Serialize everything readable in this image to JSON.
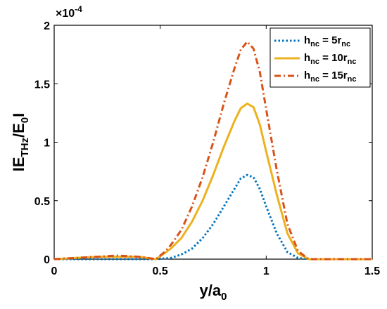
{
  "chart_data": {
    "type": "line",
    "xlabel": {
      "main": "y/a",
      "sub": "0"
    },
    "ylabel": {
      "p1": "IE",
      "s1": "THz",
      "p2": "/E",
      "s2": "0",
      "p3": "I"
    },
    "exponent": {
      "base": "×10",
      "power": "-4"
    },
    "xlim": [
      0,
      1.5
    ],
    "ylim": [
      0,
      2
    ],
    "xticks": [
      0,
      0.5,
      1,
      1.5
    ],
    "xtick_labels": [
      "0",
      "0.5",
      "1",
      "1.5"
    ],
    "yticks": [
      0,
      0.5,
      1,
      1.5,
      2
    ],
    "ytick_labels": [
      "0",
      "0.5",
      "1",
      "1.5",
      "2"
    ],
    "grid": false,
    "legend_position": "top-right",
    "series": [
      {
        "legend": {
          "p": "h",
          "sub1": "nc",
          "mid": " = 5r",
          "sub2": "nc"
        },
        "color": "#0072BD",
        "style": "dotted",
        "points": [
          [
            0,
            0
          ],
          [
            0.1,
            0
          ],
          [
            0.2,
            0
          ],
          [
            0.3,
            0
          ],
          [
            0.4,
            0
          ],
          [
            0.48,
            0
          ],
          [
            0.55,
            0.01
          ],
          [
            0.6,
            0.04
          ],
          [
            0.65,
            0.09
          ],
          [
            0.7,
            0.18
          ],
          [
            0.75,
            0.3
          ],
          [
            0.8,
            0.45
          ],
          [
            0.85,
            0.6
          ],
          [
            0.88,
            0.69
          ],
          [
            0.91,
            0.72
          ],
          [
            0.94,
            0.7
          ],
          [
            0.97,
            0.6
          ],
          [
            1.0,
            0.45
          ],
          [
            1.05,
            0.22
          ],
          [
            1.1,
            0.06
          ],
          [
            1.15,
            0.01
          ],
          [
            1.2,
            0
          ],
          [
            1.3,
            0
          ],
          [
            1.4,
            0
          ],
          [
            1.5,
            0
          ]
        ]
      },
      {
        "legend": {
          "p": "h",
          "sub1": "nc",
          "mid": " = 10r",
          "sub2": "nc"
        },
        "color": "#EDB120",
        "style": "solid",
        "points": [
          [
            0,
            0
          ],
          [
            0.1,
            0.01
          ],
          [
            0.2,
            0.02
          ],
          [
            0.3,
            0.02
          ],
          [
            0.4,
            0.02
          ],
          [
            0.48,
            0
          ],
          [
            0.52,
            0.05
          ],
          [
            0.55,
            0.09
          ],
          [
            0.6,
            0.18
          ],
          [
            0.65,
            0.32
          ],
          [
            0.7,
            0.5
          ],
          [
            0.75,
            0.72
          ],
          [
            0.8,
            0.96
          ],
          [
            0.85,
            1.18
          ],
          [
            0.88,
            1.29
          ],
          [
            0.91,
            1.33
          ],
          [
            0.94,
            1.3
          ],
          [
            0.97,
            1.15
          ],
          [
            1.0,
            0.92
          ],
          [
            1.05,
            0.55
          ],
          [
            1.1,
            0.22
          ],
          [
            1.15,
            0.05
          ],
          [
            1.2,
            0
          ],
          [
            1.3,
            0
          ],
          [
            1.4,
            0
          ],
          [
            1.5,
            0
          ]
        ]
      },
      {
        "legend": {
          "p": "h",
          "sub1": "nc",
          "mid": " = 15r",
          "sub2": "nc"
        },
        "color": "#D95319",
        "style": "dashdot",
        "points": [
          [
            0,
            0
          ],
          [
            0.1,
            0.01
          ],
          [
            0.2,
            0.02
          ],
          [
            0.3,
            0.03
          ],
          [
            0.4,
            0.02
          ],
          [
            0.48,
            0
          ],
          [
            0.52,
            0.06
          ],
          [
            0.55,
            0.12
          ],
          [
            0.6,
            0.25
          ],
          [
            0.65,
            0.45
          ],
          [
            0.7,
            0.7
          ],
          [
            0.75,
            1.0
          ],
          [
            0.8,
            1.33
          ],
          [
            0.85,
            1.63
          ],
          [
            0.88,
            1.79
          ],
          [
            0.91,
            1.86
          ],
          [
            0.94,
            1.8
          ],
          [
            0.97,
            1.6
          ],
          [
            1.0,
            1.28
          ],
          [
            1.05,
            0.76
          ],
          [
            1.1,
            0.3
          ],
          [
            1.15,
            0.07
          ],
          [
            1.2,
            0
          ],
          [
            1.3,
            0
          ],
          [
            1.4,
            0
          ],
          [
            1.5,
            0
          ]
        ]
      }
    ]
  }
}
